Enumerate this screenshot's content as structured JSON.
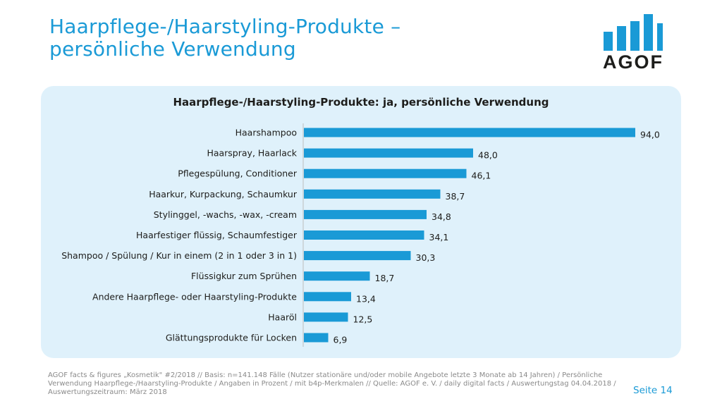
{
  "header": {
    "title_line1": "Haarpflege-/Haarstyling-Produkte –",
    "title_line2": "persönliche Verwendung"
  },
  "logo": {
    "text": "AGOF",
    "color": "#1a9ad6"
  },
  "chart_data": {
    "type": "bar",
    "orientation": "horizontal",
    "title": "Haarpflege-/Haarstyling-Produkte: ja, persönliche Verwendung",
    "categories": [
      "Haarshampoo",
      "Haarspray, Haarlack",
      "Pflegespülung, Conditioner",
      "Haarkur, Kurpackung, Schaumkur",
      "Stylinggel, -wachs, -wax, -cream",
      "Haarfestiger flüssig, Schaumfestiger",
      "Shampoo / Spülung / Kur in einem (2 in 1 oder 3 in 1)",
      "Flüssigkur zum Sprühen",
      "Andere Haarpflege- oder Haarstyling-Produkte",
      "Haaröl",
      "Glättungsprodukte für Locken"
    ],
    "values": [
      94.0,
      48.0,
      46.1,
      38.7,
      34.8,
      34.1,
      30.3,
      18.7,
      13.4,
      12.5,
      6.9
    ],
    "value_labels": [
      "94,0",
      "48,0",
      "46,1",
      "38,7",
      "34,8",
      "34,1",
      "30,3",
      "18,7",
      "13,4",
      "12,5",
      "6,9"
    ],
    "xlim": [
      0,
      100
    ],
    "bar_color": "#1a9ad6",
    "grid": false,
    "legend": "none"
  },
  "footer": {
    "line1": "AGOF facts & figures „Kosmetik\" #2/2018 // Basis: n=141.148 Fälle (Nutzer stationäre und/oder mobile Angebote letzte 3 Monate ab 14 Jahren) / Persönliche",
    "line2": "Verwendung Haarpflege-/Haarstyling-Produkte / Angaben in Prozent / mit b4p-Merkmalen // Quelle: AGOF e. V. / daily digital facts / Auswertungstag 04.04.2018 /",
    "line3": "Auswertungszeitraum: März 2018",
    "page": "Seite 14"
  }
}
